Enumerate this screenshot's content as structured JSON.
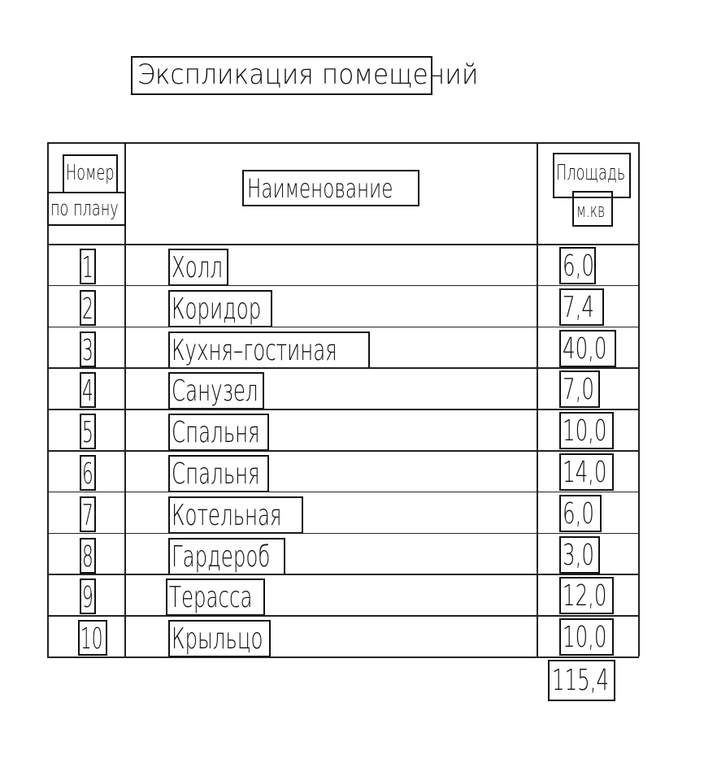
{
  "title": "Экспликация помещений",
  "headers": {
    "number_line1": "Номер",
    "number_line2": "по плану",
    "name": "Наименование",
    "area_line1": "Площадь",
    "area_line2": "м.кв"
  },
  "rows": [
    {
      "number": "1",
      "name": "Холл",
      "area": "6,0"
    },
    {
      "number": "2",
      "name": "Коридор",
      "area": "7,4"
    },
    {
      "number": "3",
      "name": "Кухня–гостиная",
      "area": "40,0"
    },
    {
      "number": "4",
      "name": "Санузел",
      "area": "7,0"
    },
    {
      "number": "5",
      "name": "Спальня",
      "area": "10,0"
    },
    {
      "number": "6",
      "name": "Спальня",
      "area": "14,0"
    },
    {
      "number": "7",
      "name": "Котельная",
      "area": "6,0"
    },
    {
      "number": "8",
      "name": "Гардероб",
      "area": "3,0"
    },
    {
      "number": "9",
      "name": "Терасса",
      "area": "12,0"
    },
    {
      "number": "10",
      "name": "Крыльцо",
      "area": "10,0"
    }
  ],
  "total_area": "115,4"
}
